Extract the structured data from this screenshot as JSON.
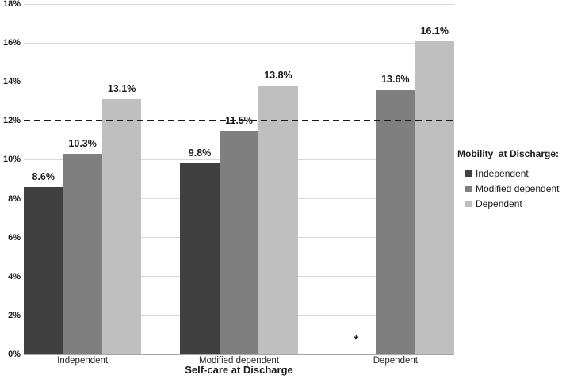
{
  "chart_data": {
    "type": "bar",
    "title": "",
    "xlabel": "Self-care at Discharge",
    "ylabel": "",
    "categories": [
      "Independent",
      "Modified dependent",
      "Dependent"
    ],
    "series": [
      {
        "name": "Independent",
        "color": "#404040",
        "values": [
          8.6,
          9.8,
          null
        ]
      },
      {
        "name": "Modified dependent",
        "color": "#7f7f7f",
        "values": [
          10.3,
          11.5,
          13.6
        ]
      },
      {
        "name": "Dependent",
        "color": "#bfbfbf",
        "values": [
          13.1,
          13.8,
          16.1
        ]
      }
    ],
    "data_label_suffix": "%",
    "ylim": [
      0,
      18
    ],
    "ytick_step": 2,
    "ytick_suffix": "%",
    "grid": true,
    "gridline_color": "#d9d9d9",
    "axis_line_color": "#a6a6a6",
    "legend_position": "right",
    "legend_title": "Mobility  at Discharge:",
    "reference_line": {
      "value": 12,
      "style": "dashed",
      "color": "#1a1a1a"
    },
    "annotations": [
      {
        "text": "*",
        "series": "Independent",
        "category": "Dependent"
      }
    ]
  }
}
